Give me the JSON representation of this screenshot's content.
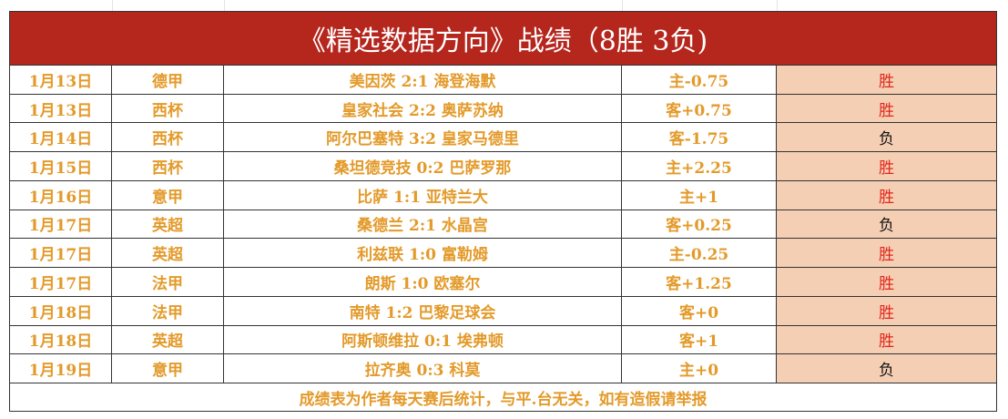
{
  "header": {
    "title": "《精选数据方向》战绩（8胜 3负)"
  },
  "table": {
    "rows": [
      {
        "date": "1月13日",
        "league": "德甲",
        "match": "美因茨 2:1 海登海默",
        "handicap": "主-0.75",
        "result": "胜",
        "result_color": "#e0261c"
      },
      {
        "date": "1月13日",
        "league": "西杯",
        "match": "皇家社会 2:2 奥萨苏纳",
        "handicap": "客+0.75",
        "result": "胜",
        "result_color": "#e0261c"
      },
      {
        "date": "1月14日",
        "league": "西杯",
        "match": "阿尔巴塞特 3:2 皇家马德里",
        "handicap": "客-1.75",
        "result": "负",
        "result_color": "#111111"
      },
      {
        "date": "1月15日",
        "league": "西杯",
        "match": "桑坦德竞技 0:2 巴萨罗那",
        "handicap": "主+2.25",
        "result": "胜",
        "result_color": "#e0261c"
      },
      {
        "date": "1月16日",
        "league": "意甲",
        "match": "比萨 1:1 亚特兰大",
        "handicap": "主+1",
        "result": "胜",
        "result_color": "#e0261c"
      },
      {
        "date": "1月17日",
        "league": "英超",
        "match": "桑德兰 2:1 水晶宫",
        "handicap": "客+0.25",
        "result": "负",
        "result_color": "#111111"
      },
      {
        "date": "1月17日",
        "league": "英超",
        "match": "利兹联 1:0 富勒姆",
        "handicap": "主-0.25",
        "result": "胜",
        "result_color": "#e0261c"
      },
      {
        "date": "1月17日",
        "league": "法甲",
        "match": "朗斯 1:0 欧塞尔",
        "handicap": "客+1.25",
        "result": "胜",
        "result_color": "#e0261c"
      },
      {
        "date": "1月18日",
        "league": "法甲",
        "match": "南特 1:2 巴黎足球会",
        "handicap": "客+0",
        "result": "胜",
        "result_color": "#e0261c"
      },
      {
        "date": "1月18日",
        "league": "英超",
        "match": "阿斯顿维拉 0:1 埃弗顿",
        "handicap": "客+1",
        "result": "胜",
        "result_color": "#e0261c"
      },
      {
        "date": "1月19日",
        "league": "意甲",
        "match": "拉齐奥 0:3 科莫",
        "handicap": "主+0",
        "result": "负",
        "result_color": "#111111"
      }
    ]
  },
  "footer": {
    "note": "成绩表为作者每天赛后统计，与平.台无关，如有造假请举报"
  }
}
